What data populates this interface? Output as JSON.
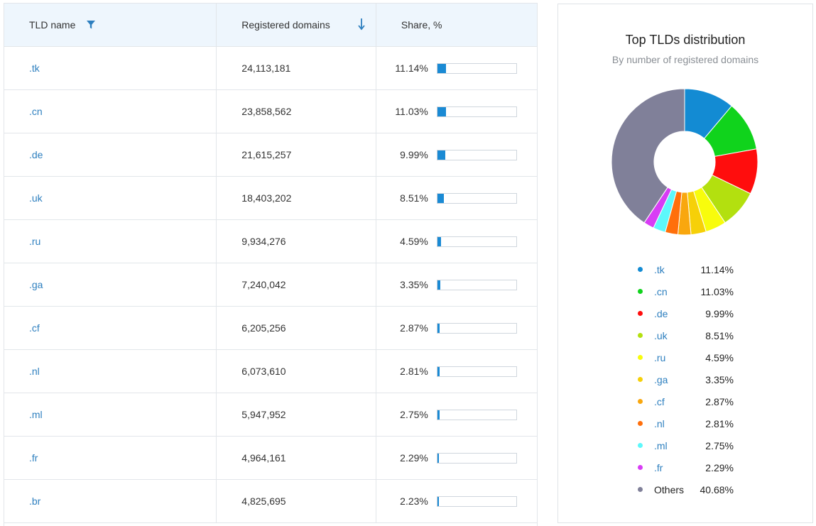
{
  "table": {
    "headers": {
      "tld": "TLD name",
      "registered": "Registered domains",
      "share": "Share, %"
    },
    "icons": {
      "filter": "filter-icon",
      "sort": "sort-desc-arrow-icon"
    },
    "rows": [
      {
        "tld": ".tk",
        "registered": "24,113,181",
        "share": "11.14%",
        "share_value": 11.14
      },
      {
        "tld": ".cn",
        "registered": "23,858,562",
        "share": "11.03%",
        "share_value": 11.03
      },
      {
        "tld": ".de",
        "registered": "21,615,257",
        "share": "9.99%",
        "share_value": 9.99
      },
      {
        "tld": ".uk",
        "registered": "18,403,202",
        "share": "8.51%",
        "share_value": 8.51
      },
      {
        "tld": ".ru",
        "registered": "9,934,276",
        "share": "4.59%",
        "share_value": 4.59
      },
      {
        "tld": ".ga",
        "registered": "7,240,042",
        "share": "3.35%",
        "share_value": 3.35
      },
      {
        "tld": ".cf",
        "registered": "6,205,256",
        "share": "2.87%",
        "share_value": 2.87
      },
      {
        "tld": ".nl",
        "registered": "6,073,610",
        "share": "2.81%",
        "share_value": 2.81
      },
      {
        "tld": ".ml",
        "registered": "5,947,952",
        "share": "2.75%",
        "share_value": 2.75
      },
      {
        "tld": ".fr",
        "registered": "4,964,161",
        "share": "2.29%",
        "share_value": 2.29
      },
      {
        "tld": ".br",
        "registered": "4,825,695",
        "share": "2.23%",
        "share_value": 2.23
      }
    ],
    "bar_color": "#1a8ad4"
  },
  "chart_data": {
    "type": "pie",
    "donut": true,
    "title": "Top TLDs distribution",
    "subtitle": "By number of registered domains",
    "legend_position": "bottom",
    "slices": [
      {
        "label": ".tk",
        "value": 11.14,
        "display": "11.14%",
        "color": "#138bd3",
        "link": true
      },
      {
        "label": ".cn",
        "value": 11.03,
        "display": "11.03%",
        "color": "#10d31c",
        "link": true
      },
      {
        "label": ".de",
        "value": 9.99,
        "display": "9.99%",
        "color": "#ff0d0d",
        "link": true
      },
      {
        "label": ".uk",
        "value": 8.51,
        "display": "8.51%",
        "color": "#b3e00f",
        "link": true
      },
      {
        "label": ".ru",
        "value": 4.59,
        "display": "4.59%",
        "color": "#f8fc0c",
        "link": true
      },
      {
        "label": ".ga",
        "value": 3.35,
        "display": "3.35%",
        "color": "#f6d008",
        "link": true
      },
      {
        "label": ".cf",
        "value": 2.87,
        "display": "2.87%",
        "color": "#f9a70e",
        "link": true
      },
      {
        "label": ".nl",
        "value": 2.81,
        "display": "2.81%",
        "color": "#ff6f0b",
        "link": true
      },
      {
        "label": ".ml",
        "value": 2.75,
        "display": "2.75%",
        "color": "#5df8fb",
        "link": true
      },
      {
        "label": ".fr",
        "value": 2.29,
        "display": "2.29%",
        "color": "#d83cf5",
        "link": true
      },
      {
        "label": "Others",
        "value": 40.68,
        "display": "40.68%",
        "color": "#808099",
        "link": false
      }
    ]
  }
}
